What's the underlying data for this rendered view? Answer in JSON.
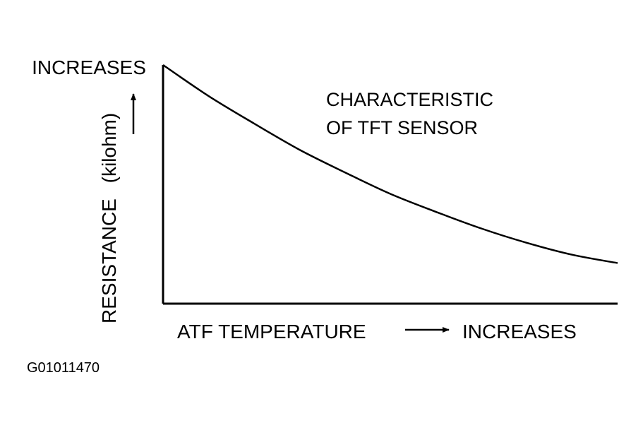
{
  "chart_data": {
    "type": "line",
    "annotation": [
      "CHARACTERISTIC",
      "OF TFT SENSOR"
    ],
    "y_axis": {
      "label": "RESISTANCE",
      "unit": "(kilohm)",
      "top_label": "INCREASES"
    },
    "x_axis": {
      "label": "ATF TEMPERATURE",
      "direction_label": "INCREASES"
    },
    "series": [
      {
        "x": [
          0,
          0.1,
          0.2,
          0.3,
          0.4,
          0.5,
          0.6,
          0.7,
          0.8,
          0.9,
          1.0
        ],
        "values": [
          1.0,
          0.87,
          0.755,
          0.645,
          0.55,
          0.46,
          0.385,
          0.315,
          0.255,
          0.205,
          0.17
        ]
      }
    ],
    "xlim": [
      0,
      1
    ],
    "ylim": [
      0,
      1
    ],
    "grid": false,
    "ticks": false,
    "colors": {
      "line": "#000000",
      "background": "#ffffff"
    }
  },
  "figure_id": "G01011470"
}
